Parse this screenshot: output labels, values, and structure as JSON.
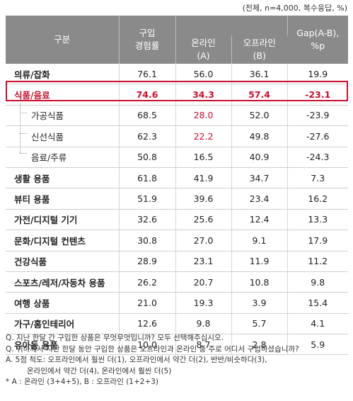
{
  "header_note": "(전체, n=4,000, 복수응답, %)",
  "columns": {
    "category": "구분",
    "purchase_line1": "구입",
    "purchase_line2": "경험률",
    "online_line1": "온라인",
    "online_line2": "(A)",
    "offline_line1": "오프라인",
    "offline_line2": "(B)",
    "gap_line1": "Gap(A-B),",
    "gap_line2": "%p"
  },
  "rows": [
    {
      "label": "의류/잡화",
      "purchase": "76.1",
      "online": "56.0",
      "offline": "36.1",
      "gap": "19.9"
    },
    {
      "label": "식품/음료",
      "purchase": "74.6",
      "online": "34.3",
      "offline": "57.4",
      "gap": "-23.1"
    },
    {
      "label": "가공식품",
      "purchase": "68.5",
      "online": "28.0",
      "offline": "52.0",
      "gap": "-23.9"
    },
    {
      "label": "신선식품",
      "purchase": "62.3",
      "online": "22.2",
      "offline": "49.8",
      "gap": "-27.6"
    },
    {
      "label": "음료/주류",
      "purchase": "50.8",
      "online": "16.5",
      "offline": "40.9",
      "gap": "-24.3"
    },
    {
      "label": "생활 용품",
      "purchase": "61.8",
      "online": "41.9",
      "offline": "34.7",
      "gap": "7.3"
    },
    {
      "label": "뷰티 용품",
      "purchase": "51.9",
      "online": "39.6",
      "offline": "23.4",
      "gap": "16.2"
    },
    {
      "label": "가전/디지털 기기",
      "purchase": "32.6",
      "online": "25.6",
      "offline": "12.4",
      "gap": "13.3"
    },
    {
      "label": "문화/디지털 컨텐츠",
      "purchase": "30.8",
      "online": "27.0",
      "offline": "9.1",
      "gap": "17.9"
    },
    {
      "label": "건강식품",
      "purchase": "28.9",
      "online": "23.1",
      "offline": "11.9",
      "gap": "11.2"
    },
    {
      "label": "스포츠/레저/자동차 용품",
      "purchase": "26.2",
      "online": "20.7",
      "offline": "10.8",
      "gap": "9.8"
    },
    {
      "label": "여행 상품",
      "purchase": "21.0",
      "online": "19.3",
      "offline": "3.9",
      "gap": "15.4"
    },
    {
      "label": "가구/홈인테리어",
      "purchase": "12.6",
      "online": "9.8",
      "offline": "5.7",
      "gap": "4.1"
    },
    {
      "label": "유아동 용품",
      "purchase": "10.0",
      "online": "8.7",
      "offline": "2.8",
      "gap": "5.9"
    }
  ],
  "notes": {
    "q1": "Q. 지난 한달 간 구입한 상품은 무엇무엇입니까? 모두 선택해주십시오.",
    "q2": "Q. 귀하께서 지난 한달 동안 구입한 상품은 오프라인과 온라인 중 주로 어디서 구입하셨습니까?",
    "a1": "A. 5점 척도: 오프라인에서 훨씬 더(1), 오프라인에서 약간 더(2), 반반/비슷하다(3),",
    "a2": "온라인에서 약간 더(4), 온라인에서 훨씬 더(5)",
    "legend": "* A : 온라인 (3+4+5), B : 오프라인 (1+2+3)"
  },
  "colors": {
    "highlight": "#c8102e",
    "header_bg": "#8a8a8a"
  }
}
